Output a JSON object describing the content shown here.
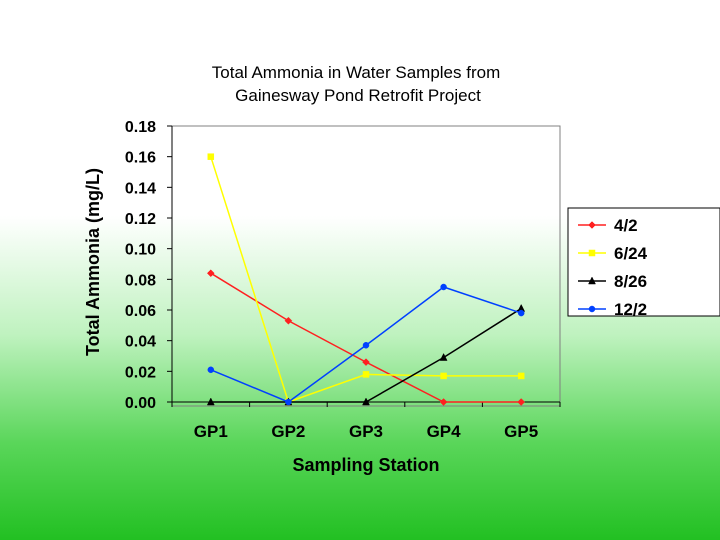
{
  "chart_data": {
    "type": "line",
    "title_lines": [
      "Total Ammonia in Water Samples from",
      "Gainesway Pond Retrofit Project"
    ],
    "xlabel": "Sampling Station",
    "ylabel": "Total Ammonia (mg/L)",
    "categories": [
      "GP1",
      "GP2",
      "GP3",
      "GP4",
      "GP5"
    ],
    "ylim": [
      0,
      0.18
    ],
    "yticks": [
      "0.00",
      "0.02",
      "0.04",
      "0.06",
      "0.08",
      "0.10",
      "0.12",
      "0.14",
      "0.16",
      "0.18"
    ],
    "grid": false,
    "legend_position": "right",
    "series": [
      {
        "name": "4/2",
        "color": "#ff2020",
        "marker": "diamond",
        "values": [
          0.084,
          0.053,
          0.026,
          0.0,
          0.0
        ]
      },
      {
        "name": "6/24",
        "color": "#ffff00",
        "marker": "square",
        "values": [
          0.16,
          0.0,
          0.018,
          0.017,
          0.017
        ]
      },
      {
        "name": "8/26",
        "color": "#000000",
        "marker": "triangle",
        "values": [
          0.0,
          0.0,
          0.0,
          0.029,
          0.061
        ]
      },
      {
        "name": "12/2",
        "color": "#0040ff",
        "marker": "circle",
        "values": [
          0.021,
          0.0,
          0.037,
          0.075,
          0.058
        ]
      }
    ]
  }
}
